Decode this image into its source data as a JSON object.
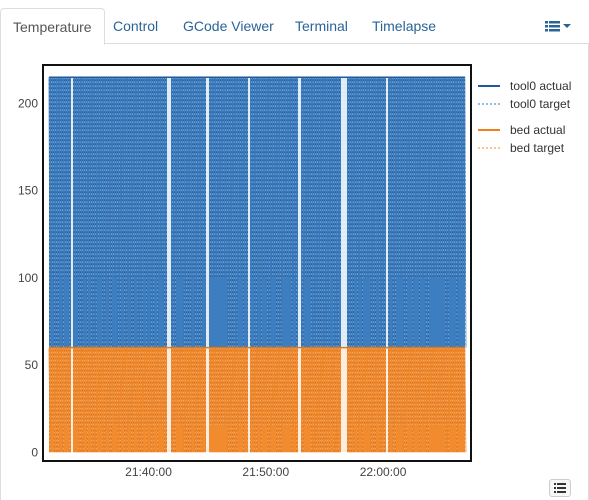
{
  "tabs": [
    {
      "label": "Temperature",
      "active": true
    },
    {
      "label": "Control"
    },
    {
      "label": "GCode Viewer"
    },
    {
      "label": "Terminal"
    },
    {
      "label": "Timelapse"
    }
  ],
  "menu_icon": "list-icon",
  "legend_toggle_icon": "list-icon",
  "chart_data": {
    "type": "line",
    "yticks": [
      0,
      50,
      100,
      150,
      200
    ],
    "xticks": [
      "21:40:00",
      "21:50:00",
      "22:00:00"
    ],
    "ylim": [
      -5,
      222
    ],
    "xlim": [
      "21:31:00",
      "22:07:30"
    ],
    "series": [
      {
        "name": "tool0 actual",
        "color": "#1f5a9b",
        "style": "solid",
        "low": 60,
        "high": 215
      },
      {
        "name": "tool0 target",
        "color": "#6fa8dc",
        "style": "dotted",
        "low": 60,
        "high": 215
      },
      {
        "name": "bed actual",
        "color": "#f07f1d",
        "style": "solid",
        "low": 0,
        "high": 60
      },
      {
        "name": "bed target",
        "color": "#f7b26b",
        "style": "dotted",
        "low": 0,
        "high": 60
      }
    ]
  }
}
